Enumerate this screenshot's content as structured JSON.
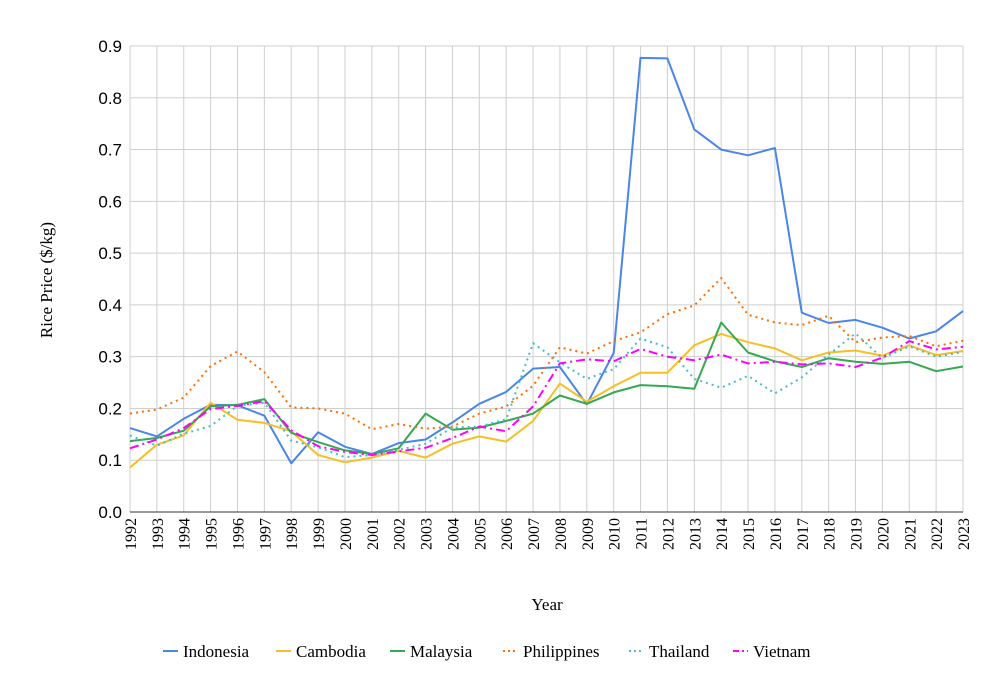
{
  "chart_data": {
    "type": "line",
    "title": "",
    "xlabel": "Year",
    "ylabel": "Rice Price ($/kg)",
    "ylim": [
      0,
      0.9
    ],
    "y_ticks": [
      "0.0",
      "0.1",
      "0.2",
      "0.3",
      "0.4",
      "0.5",
      "0.6",
      "0.7",
      "0.8",
      "0.9"
    ],
    "grid": true,
    "legend_position": "bottom",
    "x": [
      "1992",
      "1993",
      "1994",
      "1995",
      "1996",
      "1997",
      "1998",
      "1999",
      "2000",
      "2001",
      "2002",
      "2003",
      "2004",
      "2005",
      "2006",
      "2007",
      "2008",
      "2009",
      "2010",
      "2011",
      "2012",
      "2013",
      "2014",
      "2015",
      "2016",
      "2017",
      "2018",
      "2019",
      "2020",
      "2021",
      "2022",
      "2023"
    ],
    "series": [
      {
        "name": "Indonesia",
        "color": "#4a86e8",
        "style": "solid",
        "values": [
          0.162,
          0.146,
          0.18,
          0.207,
          0.206,
          0.186,
          0.094,
          0.154,
          0.126,
          0.112,
          0.133,
          0.14,
          0.173,
          0.209,
          0.232,
          0.277,
          0.28,
          0.208,
          0.307,
          0.877,
          0.876,
          0.739,
          0.7,
          0.689,
          0.703,
          0.385,
          0.365,
          0.371,
          0.356,
          0.335,
          0.349,
          0.388
        ]
      },
      {
        "name": "Cambodia",
        "color": "#f6bf26",
        "style": "solid",
        "values": [
          0.086,
          0.13,
          0.148,
          0.211,
          0.178,
          0.172,
          0.156,
          0.11,
          0.096,
          0.105,
          0.118,
          0.105,
          0.132,
          0.146,
          0.136,
          0.176,
          0.248,
          0.213,
          0.243,
          0.269,
          0.269,
          0.322,
          0.344,
          0.328,
          0.316,
          0.293,
          0.308,
          0.312,
          0.302,
          0.322,
          0.303,
          0.311
        ]
      },
      {
        "name": "Malaysia",
        "color": "#34a853",
        "style": "solid",
        "values": [
          0.137,
          0.143,
          0.157,
          0.204,
          0.207,
          0.218,
          0.153,
          0.135,
          0.119,
          0.112,
          0.123,
          0.19,
          0.159,
          0.163,
          0.176,
          0.19,
          0.225,
          0.209,
          0.231,
          0.245,
          0.243,
          0.238,
          0.366,
          0.308,
          0.291,
          0.28,
          0.297,
          0.29,
          0.286,
          0.29,
          0.272,
          0.281
        ]
      },
      {
        "name": "Philippines",
        "color": "#ff6d01",
        "style": "dotted",
        "values": [
          0.19,
          0.198,
          0.221,
          0.282,
          0.31,
          0.27,
          0.202,
          0.2,
          0.19,
          0.16,
          0.17,
          0.161,
          0.165,
          0.19,
          0.204,
          0.244,
          0.318,
          0.306,
          0.33,
          0.347,
          0.382,
          0.399,
          0.452,
          0.381,
          0.366,
          0.361,
          0.379,
          0.328,
          0.337,
          0.34,
          0.32,
          0.331
        ]
      },
      {
        "name": "Thailand",
        "color": "#46bdc6",
        "style": "dotted",
        "values": [
          0.148,
          0.128,
          0.151,
          0.166,
          0.205,
          0.211,
          0.138,
          0.125,
          0.106,
          0.11,
          0.12,
          0.132,
          0.163,
          0.165,
          0.179,
          0.326,
          0.289,
          0.257,
          0.276,
          0.335,
          0.318,
          0.257,
          0.24,
          0.263,
          0.229,
          0.26,
          0.304,
          0.345,
          0.297,
          0.32,
          0.3,
          0.309
        ]
      },
      {
        "name": "Vietnam",
        "color": "#ff00ff",
        "style": "dashdot",
        "values": [
          0.123,
          0.14,
          0.162,
          0.199,
          0.205,
          0.214,
          0.158,
          0.127,
          0.116,
          0.11,
          0.117,
          0.124,
          0.143,
          0.165,
          0.156,
          0.204,
          0.287,
          0.295,
          0.291,
          0.315,
          0.3,
          0.293,
          0.304,
          0.287,
          0.29,
          0.285,
          0.287,
          0.28,
          0.298,
          0.33,
          0.314,
          0.319
        ]
      }
    ]
  }
}
